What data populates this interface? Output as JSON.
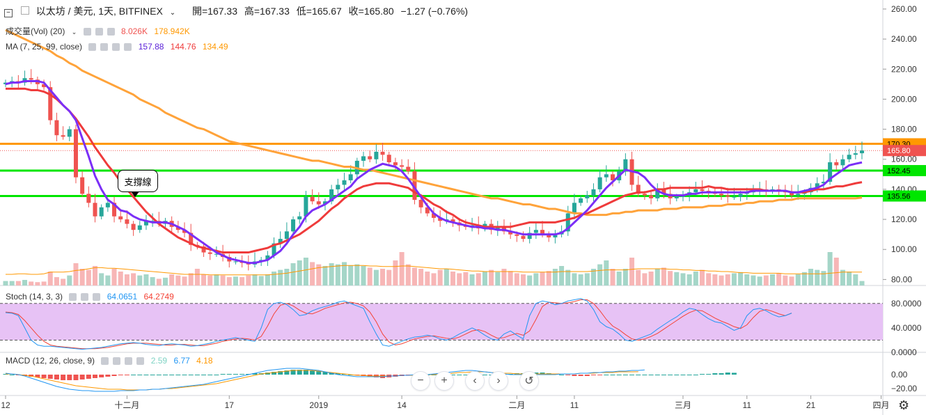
{
  "header": {
    "collapse_icon": "minus-square-icon",
    "symbol": "以太坊 / 美元, 1天, BITFINEX",
    "open_label": "開=167.33",
    "high_label": "高=167.33",
    "low_label": "低=165.67",
    "close_label": "收=165.80",
    "change_label": "−1.27 (−0.76%)"
  },
  "indicators": {
    "volume": {
      "label": "成交量(Vol) (20)",
      "value1": "8.026K",
      "value2": "178.942K"
    },
    "ma": {
      "label": "MA (7, 25, 99, close)",
      "v7": "157.88",
      "v25": "144.76",
      "v99": "134.49"
    },
    "stoch": {
      "label": "Stoch (14, 3, 3)",
      "k": "64.0651",
      "d": "64.2749"
    },
    "macd": {
      "label": "MACD (12, 26, close, 9)",
      "hist": "2.59",
      "macd": "6.77",
      "signal": "4.18"
    }
  },
  "annotation": {
    "support_label": "支撐線"
  },
  "navigation": {
    "zoom_out": "−",
    "zoom_in": "+",
    "prev": "‹",
    "next": "›",
    "reset": "↺"
  },
  "settings_icon": "gear-icon",
  "chart_data": {
    "type": "candlestick",
    "price_axis": {
      "ylim": [
        76,
        266
      ],
      "ticks": [
        "260.00",
        "240.00",
        "220.00",
        "200.00",
        "180.00",
        "160.00",
        "140.00",
        "120.00",
        "100.00",
        "80.00"
      ]
    },
    "stoch_axis": {
      "ylim": [
        0,
        98
      ],
      "ticks": [
        "80.0000",
        "40.0000",
        "0.0000"
      ]
    },
    "macd_axis": {
      "ylim": [
        -30,
        30
      ],
      "ticks": [
        "0.00",
        "−20.00"
      ]
    },
    "x_ticks": [
      {
        "label": "12",
        "i": 0
      },
      {
        "label": "十二月",
        "i": 19
      },
      {
        "label": "17",
        "i": 35
      },
      {
        "label": "2019",
        "i": 49
      },
      {
        "label": "14",
        "i": 62
      },
      {
        "label": "二月",
        "i": 80
      },
      {
        "label": "11",
        "i": 89
      },
      {
        "label": "三月",
        "i": 106
      },
      {
        "label": "11",
        "i": 116
      },
      {
        "label": "21",
        "i": 126
      },
      {
        "label": "四月",
        "i": 137
      }
    ],
    "horizontal_levels": [
      {
        "value": 170.3,
        "label": "170.30",
        "color": "#ff9800"
      },
      {
        "value": 152.45,
        "label": "152.45",
        "color": "#00e600"
      },
      {
        "value": 135.56,
        "label": "135.56",
        "color": "#00e600"
      }
    ],
    "last_price": {
      "value": 165.8,
      "label": "165.80",
      "color": "#ef5350"
    },
    "closes": [
      211,
      212,
      211,
      214,
      213,
      210,
      208,
      186,
      176,
      175,
      180,
      148,
      137,
      131,
      122,
      128,
      131,
      122,
      120,
      117,
      113,
      116,
      119,
      119,
      117,
      119,
      115,
      113,
      111,
      103,
      102,
      98,
      97,
      97,
      95,
      92,
      92,
      91,
      90,
      92,
      93,
      96,
      104,
      107,
      112,
      120,
      122,
      135,
      132,
      130,
      132,
      140,
      143,
      146,
      150,
      159,
      162,
      160,
      165,
      163,
      158,
      156,
      155,
      152,
      133,
      128,
      124,
      121,
      119,
      120,
      118,
      116,
      115,
      116,
      114,
      117,
      113,
      115,
      112,
      110,
      109,
      107,
      111,
      113,
      110,
      108,
      110,
      112,
      124,
      131,
      134,
      136,
      140,
      148,
      150,
      146,
      152,
      160,
      143,
      137,
      136,
      134,
      140,
      137,
      134,
      135,
      136,
      138,
      140,
      139,
      138,
      137,
      136,
      135,
      135,
      137,
      138,
      139,
      140,
      139,
      140,
      139,
      138,
      136,
      137,
      138,
      141,
      144,
      145,
      158,
      156,
      160,
      163,
      164,
      165.8
    ],
    "volumes": [
      8,
      8,
      8,
      10,
      7,
      6,
      7,
      25,
      15,
      12,
      18,
      40,
      30,
      28,
      35,
      22,
      18,
      30,
      25,
      20,
      22,
      18,
      20,
      15,
      12,
      14,
      20,
      18,
      16,
      22,
      30,
      20,
      18,
      20,
      18,
      15,
      16,
      15,
      18,
      20,
      17,
      20,
      25,
      28,
      30,
      40,
      45,
      50,
      42,
      38,
      35,
      40,
      38,
      42,
      36,
      38,
      35,
      32,
      28,
      30,
      28,
      45,
      60,
      38,
      32,
      30,
      25,
      22,
      28,
      30,
      25,
      22,
      24,
      20,
      22,
      25,
      28,
      24,
      30,
      26,
      22,
      20,
      18,
      22,
      24,
      26,
      30,
      35,
      28,
      22,
      20,
      22,
      30,
      38,
      45,
      30,
      25,
      30,
      50,
      28,
      22,
      25,
      30,
      32,
      26,
      24,
      22,
      20,
      25,
      28,
      22,
      20,
      18,
      20,
      22,
      24,
      20,
      18,
      16,
      18,
      20,
      22,
      18,
      16,
      20,
      24,
      30,
      28,
      26,
      60,
      50,
      28,
      25,
      20,
      8
    ],
    "vol_ma": [
      20,
      20,
      21,
      21,
      20,
      20,
      21,
      24,
      24,
      24,
      25,
      27,
      28,
      30,
      32,
      32,
      31,
      31,
      30,
      29,
      28,
      27,
      26,
      25,
      24,
      23,
      22,
      21,
      20,
      20,
      20,
      20,
      19,
      19,
      19,
      19,
      19,
      19,
      19,
      19,
      19,
      19,
      20,
      21,
      22,
      24,
      26,
      28,
      30,
      32,
      33,
      34,
      35,
      36,
      36,
      36,
      36,
      35,
      35,
      34,
      34,
      34,
      35,
      35,
      34,
      33,
      32,
      31,
      30,
      30,
      29,
      28,
      27,
      26,
      26,
      25,
      25,
      25,
      25,
      25,
      25,
      24,
      24,
      24,
      24,
      24,
      24,
      25,
      25,
      25,
      25,
      25,
      26,
      27,
      28,
      28,
      28,
      28,
      29,
      30,
      30,
      30,
      30,
      30,
      29,
      29,
      28,
      28,
      27,
      27,
      26,
      26,
      25,
      25,
      24,
      23,
      23,
      22,
      22,
      22,
      22,
      22,
      21,
      21,
      21,
      21,
      21,
      21,
      21,
      22,
      23,
      24,
      24,
      24,
      24
    ],
    "ma7": [
      210,
      211,
      211,
      212,
      212,
      212,
      211,
      206,
      201,
      196,
      192,
      186,
      174,
      162,
      149,
      140,
      133,
      130,
      126,
      125,
      122,
      120,
      119,
      118,
      118,
      118,
      117,
      115,
      113,
      110,
      107,
      104,
      101,
      98,
      96,
      94,
      93,
      92,
      91,
      91,
      92,
      93,
      96,
      99,
      104,
      110,
      115,
      122,
      126,
      128,
      130,
      133,
      136,
      139,
      142,
      147,
      150,
      153,
      155,
      157,
      156,
      155,
      152,
      147,
      141,
      135,
      129,
      124,
      121,
      119,
      118,
      117,
      116,
      115,
      115,
      114,
      114,
      113,
      113,
      112,
      111,
      110,
      110,
      110,
      110,
      110,
      110,
      111,
      114,
      118,
      122,
      126,
      131,
      136,
      141,
      145,
      149,
      153,
      152,
      151,
      148,
      143,
      139,
      137,
      136,
      136,
      136,
      137,
      137,
      138,
      138,
      138,
      138,
      138,
      138,
      138,
      138,
      139,
      139,
      139,
      139,
      139,
      139,
      138,
      138,
      139,
      140,
      141,
      143,
      147,
      150,
      153,
      156,
      157,
      157.9
    ],
    "ma25": [
      207,
      207,
      207,
      207,
      206,
      206,
      205,
      203,
      200,
      196,
      192,
      187,
      181,
      175,
      168,
      162,
      156,
      151,
      145,
      140,
      135,
      130,
      125,
      121,
      117,
      114,
      111,
      108,
      106,
      104,
      102,
      101,
      100,
      99,
      98,
      98,
      98,
      98,
      98,
      99,
      100,
      101,
      103,
      104,
      106,
      108,
      110,
      113,
      116,
      119,
      123,
      127,
      130,
      134,
      137,
      140,
      142,
      143,
      144,
      144,
      144,
      143,
      142,
      141,
      138,
      136,
      133,
      130,
      128,
      125,
      123,
      120,
      118,
      117,
      116,
      115,
      115,
      115,
      115,
      115,
      116,
      117,
      118,
      118,
      118,
      118,
      118,
      119,
      120,
      121,
      123,
      124,
      126,
      128,
      130,
      132,
      134,
      136,
      137,
      138,
      138,
      139,
      140,
      140,
      141,
      141,
      141,
      141,
      141,
      141,
      142,
      141,
      141,
      140,
      140,
      140,
      140,
      140,
      140,
      139,
      139,
      139,
      139,
      138,
      138,
      138,
      139,
      140,
      140,
      141,
      142,
      142,
      143,
      144,
      144.76
    ],
    "ma99": [
      246,
      244,
      242,
      240,
      238,
      236,
      234,
      232,
      229,
      227,
      224,
      222,
      219,
      217,
      215,
      213,
      211,
      209,
      207,
      205,
      203,
      200,
      198,
      196,
      194,
      191,
      189,
      187,
      185,
      183,
      181,
      180,
      178,
      176,
      174,
      172,
      171,
      170,
      169,
      168,
      167,
      166,
      165,
      164,
      163,
      162,
      161,
      160,
      159,
      159,
      158,
      157,
      156,
      155,
      155,
      154,
      153,
      153,
      152,
      151,
      150,
      149,
      148,
      147,
      146,
      145,
      144,
      143,
      142,
      141,
      140,
      139,
      138,
      137,
      136,
      135,
      134,
      134,
      133,
      132,
      131,
      130,
      130,
      129,
      128,
      127,
      127,
      126,
      125,
      124,
      124,
      123,
      123,
      123,
      123,
      124,
      124,
      125,
      125,
      126,
      126,
      126,
      126,
      127,
      127,
      127,
      128,
      128,
      128,
      128,
      129,
      129,
      129,
      130,
      130,
      130,
      131,
      131,
      132,
      132,
      132,
      133,
      133,
      133,
      134,
      134,
      134,
      134,
      134,
      134,
      134,
      134,
      134,
      134,
      134.49
    ],
    "stoch_k": [
      65,
      64,
      60,
      40,
      20,
      12,
      10,
      10,
      9,
      8,
      7,
      6,
      5,
      6,
      7,
      8,
      10,
      12,
      14,
      15,
      16,
      15,
      13,
      12,
      11,
      13,
      14,
      13,
      12,
      10,
      11,
      13,
      15,
      18,
      20,
      22,
      24,
      22,
      20,
      18,
      40,
      70,
      80,
      82,
      78,
      70,
      60,
      62,
      68,
      72,
      75,
      78,
      82,
      84,
      80,
      76,
      72,
      50,
      30,
      12,
      10,
      14,
      18,
      22,
      25,
      26,
      28,
      26,
      22,
      20,
      24,
      30,
      35,
      40,
      35,
      28,
      22,
      20,
      30,
      35,
      28,
      22,
      60,
      80,
      84,
      82,
      78,
      80,
      84,
      86,
      88,
      84,
      70,
      50,
      42,
      38,
      30,
      20,
      18,
      22,
      26,
      30,
      38,
      45,
      52,
      58,
      66,
      72,
      70,
      62,
      55,
      50,
      48,
      42,
      36,
      40,
      60,
      70,
      72,
      68,
      62,
      58,
      60,
      64.07
    ],
    "stoch_d": [
      66,
      65,
      62,
      52,
      40,
      28,
      18,
      12,
      10,
      9,
      8,
      7,
      6,
      6,
      6,
      7,
      8,
      10,
      12,
      14,
      15,
      15,
      15,
      14,
      13,
      12,
      12,
      13,
      13,
      12,
      11,
      11,
      13,
      15,
      18,
      20,
      22,
      23,
      22,
      20,
      26,
      43,
      63,
      77,
      80,
      76,
      69,
      64,
      63,
      67,
      72,
      75,
      78,
      81,
      82,
      80,
      76,
      66,
      50,
      30,
      17,
      12,
      14,
      18,
      22,
      24,
      26,
      27,
      25,
      23,
      22,
      25,
      30,
      35,
      37,
      34,
      28,
      23,
      24,
      28,
      31,
      28,
      35,
      54,
      75,
      82,
      81,
      80,
      81,
      83,
      86,
      86,
      80,
      68,
      54,
      43,
      37,
      29,
      22,
      20,
      22,
      26,
      31,
      38,
      45,
      52,
      59,
      65,
      69,
      68,
      62,
      56,
      51,
      47,
      42,
      39,
      45,
      57,
      67,
      70,
      67,
      63,
      60,
      64.27
    ],
    "macd_hist": [
      1,
      0,
      -1,
      -2,
      -3,
      -4,
      -5,
      -6,
      -7,
      -8,
      -8,
      -8,
      -7,
      -6,
      -5,
      -4,
      -3,
      -2,
      -1,
      -1,
      0,
      0,
      0,
      0,
      0,
      0,
      0,
      0,
      0,
      0,
      0,
      0,
      0,
      0,
      1,
      1,
      1,
      1,
      1,
      2,
      2,
      3,
      4,
      5,
      6,
      7,
      7,
      7,
      6,
      5,
      4,
      3,
      2,
      1,
      0,
      -1,
      -2,
      -3,
      -4,
      -5,
      -4,
      -3,
      -2,
      -1,
      -1,
      0,
      0,
      0,
      0,
      0,
      0,
      0,
      0,
      0,
      0,
      0,
      0,
      0,
      1,
      1,
      2,
      2,
      3,
      3,
      3,
      2,
      1,
      0,
      -1,
      -2,
      -2,
      -2,
      -1,
      -1,
      0,
      0,
      0,
      0,
      0,
      0,
      0,
      0,
      0,
      0,
      0,
      0,
      0,
      0,
      0,
      1,
      1,
      2,
      2,
      3,
      2.59
    ],
    "macd_line": [
      2,
      1,
      0,
      -2,
      -5,
      -8,
      -11,
      -14,
      -17,
      -19,
      -21,
      -22,
      -23,
      -23,
      -24,
      -24,
      -24,
      -24,
      -23,
      -23,
      -23,
      -22,
      -22,
      -21,
      -21,
      -20,
      -19,
      -18,
      -17,
      -16,
      -15,
      -14,
      -12,
      -10,
      -8,
      -6,
      -4,
      -2,
      0,
      2,
      4,
      6,
      7,
      8,
      9,
      9,
      9,
      8,
      7,
      6,
      4,
      2,
      0,
      -1,
      -2,
      -3,
      -3,
      -3,
      -3,
      -3,
      -2,
      -2,
      -1,
      -1,
      0,
      0,
      0,
      1,
      2,
      3,
      4,
      5,
      6,
      6,
      5,
      4,
      3,
      2,
      1,
      0,
      0,
      0,
      0,
      0,
      0,
      0,
      0,
      1,
      1,
      1,
      2,
      2,
      3,
      3,
      4,
      4,
      5,
      5,
      6,
      6,
      6.77
    ],
    "signal_line": [
      1,
      1,
      0,
      -1,
      -2,
      -4,
      -6,
      -8,
      -10,
      -12,
      -14,
      -16,
      -17,
      -18,
      -19,
      -20,
      -21,
      -21,
      -21,
      -22,
      -22,
      -22,
      -22,
      -21,
      -21,
      -20,
      -20,
      -19,
      -18,
      -17,
      -16,
      -15,
      -14,
      -13,
      -11,
      -9,
      -7,
      -5,
      -3,
      -1,
      1,
      2,
      3,
      4,
      5,
      6,
      6,
      6,
      6,
      5,
      4,
      3,
      2,
      1,
      0,
      -1,
      -1,
      -2,
      -2,
      -2,
      -2,
      -2,
      -1,
      -1,
      -1,
      0,
      0,
      0,
      1,
      1,
      2,
      3,
      3,
      4,
      4,
      4,
      3,
      3,
      2,
      2,
      1,
      1,
      1,
      1,
      1,
      1,
      1,
      1,
      1,
      1,
      2,
      2,
      2,
      3,
      3,
      3,
      4,
      4,
      4,
      4.18
    ]
  },
  "colors": {
    "up": "#26a69a",
    "down": "#ef5350",
    "ma7": "#7b2ff7",
    "ma25": "#ef3b3b",
    "ma99": "#ffa33a",
    "stoch_k": "#2196f3",
    "stoch_d": "#f44336",
    "stoch_band": "#e7c2f5",
    "macd_line": "#2196f3",
    "signal_line": "#ff9800",
    "vol_up": "#a5d6c8",
    "vol_down": "#f7b6b6",
    "vol_ma": "#ff9800"
  }
}
